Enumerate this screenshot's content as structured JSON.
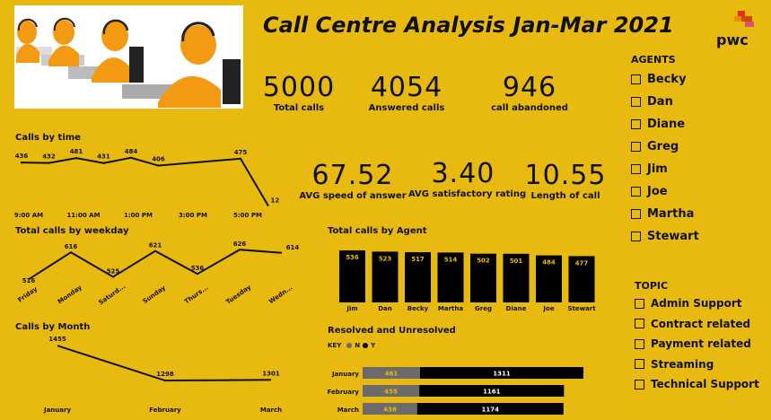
{
  "header": {
    "title": "Call Centre Analysis Jan-Mar 2021",
    "logo_text": "pwc"
  },
  "kpis": [
    {
      "value": "5000",
      "label": "Total calls"
    },
    {
      "value": "4054",
      "label": "Answered calls"
    },
    {
      "value": "946",
      "label": "call abandoned"
    },
    {
      "value": "67.52",
      "label": "AVG speed of answer"
    },
    {
      "value": "3.40",
      "label": "AVG satisfactory rating"
    },
    {
      "value": "10.55",
      "label": "Length of call"
    }
  ],
  "agents": {
    "title": "AGENTS",
    "items": [
      "Becky",
      "Dan",
      "Diane",
      "Greg",
      "Jim",
      "Joe",
      "Martha",
      "Stewart"
    ]
  },
  "topics": {
    "title": "TOPIC",
    "items": [
      "Admin Support",
      "Contract related",
      "Payment related",
      "Streaming",
      "Technical Support"
    ]
  },
  "sections": {
    "calls_by_time": "Calls by time",
    "calls_by_weekday": "Total calls by weekday",
    "calls_by_month": "Calls by Month",
    "calls_by_agent": "Total calls by Agent",
    "resolved": "Resolved and Unresolved"
  },
  "legend": {
    "key": "KEY",
    "n": "N",
    "y": "Y"
  },
  "colors": {
    "background": "#e8b90f",
    "bar": "#000000",
    "unresolved": "#6b6b6b",
    "line": "#111111"
  },
  "chart_data": [
    {
      "id": "calls_by_time",
      "type": "line",
      "title": "Calls by time",
      "x": [
        "9:00 AM",
        "10:00 AM",
        "11:00 AM",
        "12:00 PM",
        "1:00 PM",
        "2:00 PM",
        "3:00 PM",
        "4:00 PM",
        "5:00 PM",
        "6:00 PM"
      ],
      "tick_labels": [
        "9:00 AM",
        "11:00 AM",
        "1:00 PM",
        "3:00 PM",
        "5:00 PM"
      ],
      "values": [
        436,
        432,
        481,
        431,
        484,
        406,
        null,
        null,
        475,
        12
      ]
    },
    {
      "id": "calls_by_weekday",
      "type": "line",
      "title": "Total calls by weekday",
      "categories": [
        "Friday",
        "Monday",
        "Saturd...",
        "Sunday",
        "Thurs...",
        "Tuesday",
        "Wedn..."
      ],
      "values": [
        516,
        616,
        525,
        621,
        536,
        626,
        614
      ]
    },
    {
      "id": "calls_by_month",
      "type": "line",
      "title": "Calls by Month",
      "categories": [
        "January",
        "February",
        "March"
      ],
      "values": [
        1455,
        1298,
        1301
      ]
    },
    {
      "id": "calls_by_agent",
      "type": "bar",
      "title": "Total calls by Agent",
      "categories": [
        "Jim",
        "Dan",
        "Becky",
        "Martha",
        "Greg",
        "Diane",
        "Joe",
        "Stewart"
      ],
      "values": [
        536,
        523,
        517,
        514,
        502,
        501,
        484,
        477
      ]
    },
    {
      "id": "resolved",
      "type": "bar",
      "title": "Resolved and Unresolved",
      "categories": [
        "January",
        "February",
        "March"
      ],
      "series": [
        {
          "name": "N",
          "values": [
            461,
            455,
            438
          ]
        },
        {
          "name": "Y",
          "values": [
            1311,
            1161,
            1174
          ]
        }
      ]
    }
  ]
}
